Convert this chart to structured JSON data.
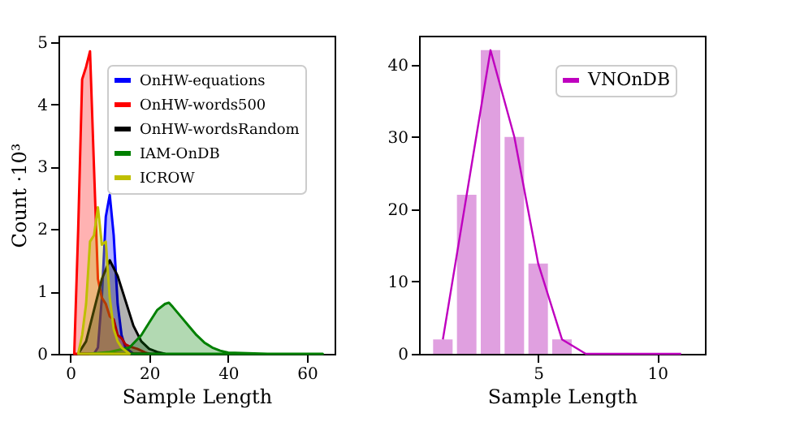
{
  "chart_data": [
    {
      "type": "area",
      "xlabel": "Sample Length",
      "ylabel": "Count ·10³",
      "xlim": [
        -3,
        67
      ],
      "xticks": [
        0,
        20,
        40,
        60
      ],
      "ylim": [
        0,
        5.1
      ],
      "yticks": [
        0,
        1,
        2,
        3,
        4,
        5
      ],
      "grid": false,
      "legend": "top right",
      "marker": "none",
      "series": [
        {
          "name": "OnHW-equations",
          "color": "#0000ff",
          "x": [
            6,
            7,
            8,
            9,
            10,
            11,
            12,
            13,
            14,
            15,
            16
          ],
          "values": [
            0,
            0.1,
            0.9,
            2.2,
            2.55,
            1.9,
            0.8,
            0.3,
            0.1,
            0.05,
            0
          ]
        },
        {
          "name": "OnHW-words500",
          "color": "#ff0000",
          "x": [
            1,
            2,
            3,
            4,
            5,
            6,
            7,
            8,
            9,
            10,
            11,
            12,
            13,
            14,
            15,
            16,
            17,
            18,
            19,
            20
          ],
          "values": [
            0,
            2.0,
            4.4,
            4.6,
            4.85,
            3.0,
            1.2,
            0.9,
            0.8,
            0.6,
            0.55,
            0.3,
            0.25,
            0.15,
            0.12,
            0.1,
            0.08,
            0.05,
            0.02,
            0
          ]
        },
        {
          "name": "OnHW-wordsRandom",
          "color": "#000000",
          "x": [
            2,
            4,
            6,
            8,
            10,
            12,
            14,
            16,
            18,
            20,
            22,
            24
          ],
          "values": [
            0,
            0.2,
            0.7,
            1.2,
            1.5,
            1.25,
            0.85,
            0.45,
            0.2,
            0.08,
            0.03,
            0
          ]
        },
        {
          "name": "IAM-OnDB",
          "color": "#008000",
          "x": [
            5,
            10,
            15,
            18,
            20,
            22,
            24,
            25,
            26,
            28,
            30,
            32,
            34,
            36,
            38,
            40,
            45,
            50,
            60,
            64
          ],
          "values": [
            0,
            0.03,
            0.1,
            0.3,
            0.5,
            0.7,
            0.8,
            0.82,
            0.75,
            0.6,
            0.45,
            0.3,
            0.18,
            0.1,
            0.05,
            0.02,
            0.01,
            0,
            0,
            0
          ]
        },
        {
          "name": "ICROW",
          "color": "#bfbf00",
          "x": [
            2,
            3,
            4,
            5,
            6,
            7,
            8,
            9,
            10,
            11,
            12,
            13,
            14,
            15
          ],
          "values": [
            0,
            0.3,
            0.8,
            1.8,
            1.9,
            2.35,
            1.75,
            1.8,
            0.9,
            0.4,
            0.2,
            0.1,
            0.05,
            0
          ]
        }
      ]
    },
    {
      "type": "bar",
      "xlabel": "Sample Length",
      "xlim": [
        0,
        12
      ],
      "xticks": [
        5,
        10
      ],
      "ylim": [
        0,
        44
      ],
      "yticks": [
        0,
        10,
        20,
        30,
        40
      ],
      "grid": false,
      "legend": "top right",
      "marker": "none",
      "x": [
        1,
        2,
        3,
        4,
        5,
        6,
        7,
        8,
        9,
        10,
        11
      ],
      "series": [
        {
          "color": "#e0a0e0",
          "values": [
            2,
            22,
            42,
            30,
            12.5,
            2,
            0,
            0,
            0,
            0,
            0
          ]
        },
        {
          "type": "line",
          "name": "VNOnDB",
          "color": "#bf00bf",
          "values": [
            2,
            22,
            42,
            30,
            12.5,
            2,
            0,
            0,
            0,
            0,
            0
          ]
        }
      ]
    }
  ]
}
